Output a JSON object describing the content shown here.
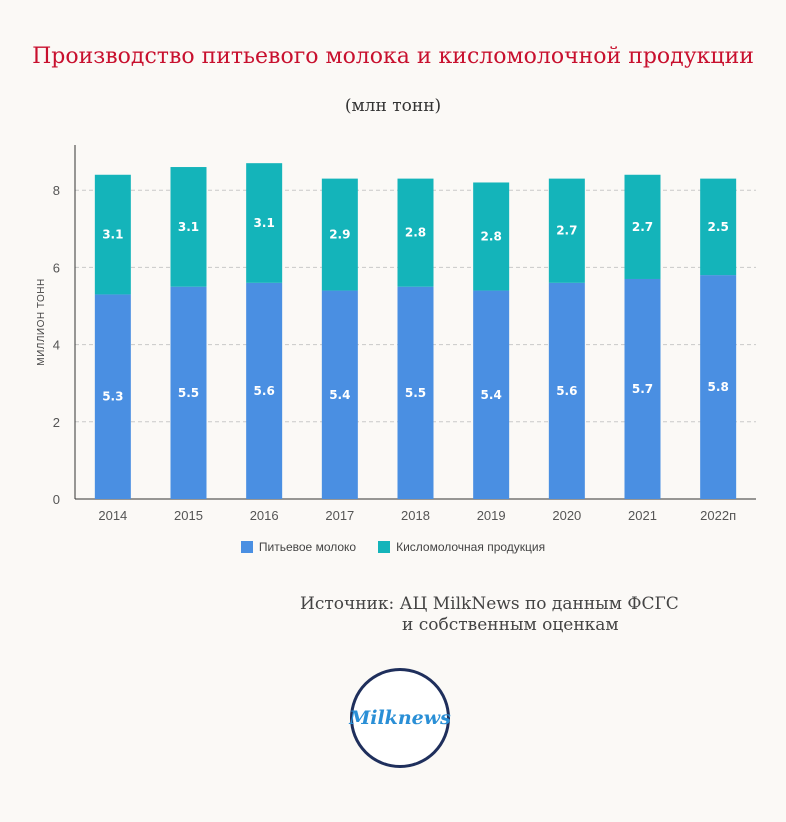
{
  "title": "Производство питьевого молока и кисломолочной продукции",
  "subtitle": "(млн тонн)",
  "source_line1": "Источник: АЦ MilkNews по данным ФСГС",
  "source_line2": "и собственным оценкам",
  "logo_text": "Milknews",
  "colors": {
    "milk": "#4a8fe2",
    "sour": "#14b4ba",
    "title": "#c8102e"
  },
  "chart_data": {
    "type": "bar",
    "stacked": true,
    "categories": [
      "2014",
      "2015",
      "2016",
      "2017",
      "2018",
      "2019",
      "2020",
      "2021",
      "2022п"
    ],
    "series": [
      {
        "name": "Питьевое молоко",
        "values": [
          5.3,
          5.5,
          5.6,
          5.4,
          5.5,
          5.4,
          5.6,
          5.7,
          5.8
        ]
      },
      {
        "name": "Кисломолочная продукция",
        "values": [
          3.1,
          3.1,
          3.1,
          2.9,
          2.8,
          2.8,
          2.7,
          2.7,
          2.5
        ]
      }
    ],
    "ylabel": "МИЛЛИОН ТОНН",
    "ylim": [
      0,
      9
    ],
    "yticks": [
      0,
      2,
      4,
      6,
      8
    ],
    "grid": true,
    "legend": "bottom"
  }
}
